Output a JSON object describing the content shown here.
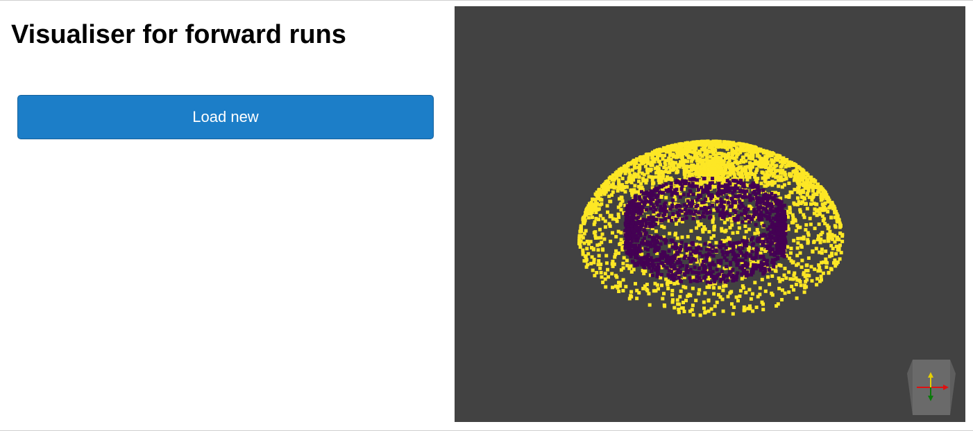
{
  "page": {
    "title": "Visualiser for forward runs"
  },
  "controls": {
    "load_button_label": "Load new"
  },
  "viewer": {
    "background_color": "#424242",
    "point_colors": {
      "outer_dome": "#fde725",
      "inner_ring": "#440154"
    },
    "axes_widget": {
      "x_axis_color": "#e01010",
      "y_axis_color": "#e6d000",
      "z_axis_color": "#0a7a0a"
    }
  },
  "theme": {
    "button_color": "#1c7ec8"
  }
}
